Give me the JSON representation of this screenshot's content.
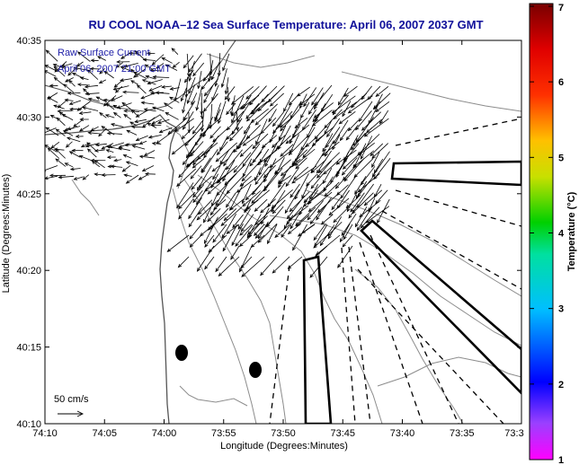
{
  "title": "RU COOL  NOAA–12  Sea Surface Temperature:  April 06, 2007 2037 GMT",
  "annotation": {
    "line1": "Raw Surface Current",
    "line2": "April 06, 2007 21:00 GMT"
  },
  "scale": {
    "label": "50 cm/s"
  },
  "axes": {
    "xlabel": "Longitude (Degrees:Minutes)",
    "ylabel": "Latitude (Degrees:Minutes)",
    "x_ticks": [
      "74:10",
      "74:05",
      "74:00",
      "73:55",
      "73:50",
      "73:45",
      "73:40",
      "73:35",
      "73:3"
    ],
    "y_ticks": [
      "40:35",
      "40:30",
      "40:25",
      "40:20",
      "40:15",
      "40:10"
    ]
  },
  "colorbar": {
    "label": "Temperature (°C)",
    "ticks": [
      "7",
      "6",
      "5",
      "4",
      "3",
      "2",
      "1"
    ],
    "range": [
      1,
      7
    ]
  },
  "colors": {
    "title": "#10109a",
    "annotation": "#2222aa",
    "contour": "#8c8c8c",
    "coast": "#555555",
    "vectors": "#000000"
  },
  "map": {
    "lon_range": [
      "74:10",
      "73:30"
    ],
    "lat_range": [
      "40:10",
      "40:35"
    ],
    "features": [
      "coastline",
      "bathymetry-contours",
      "surface-current-vectors",
      "shipping-lanes"
    ]
  }
}
